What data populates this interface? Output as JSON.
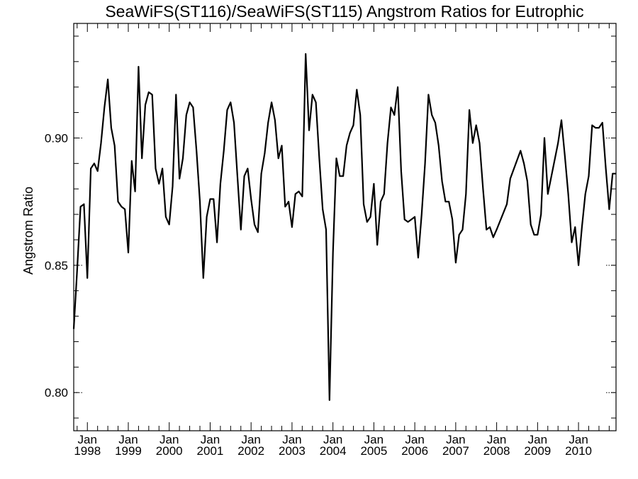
{
  "chart_data": {
    "type": "line",
    "title": "SeaWiFS(ST116)/SeaWiFS(ST115)  Angstrom Ratios for Eutrophic",
    "xlabel": "",
    "ylabel": "Angstrom Ratio",
    "xlim": [
      "1997-09",
      "2010-12"
    ],
    "ylim": [
      0.785,
      0.945
    ],
    "yticks": [
      0.8,
      0.85,
      0.9
    ],
    "ytick_labels": [
      "0.80",
      "0.85",
      "0.90"
    ],
    "xticks": [
      {
        "date": "1998-01",
        "month": "Jan",
        "year": "1998"
      },
      {
        "date": "1999-01",
        "month": "Jan",
        "year": "1999"
      },
      {
        "date": "2000-01",
        "month": "Jan",
        "year": "2000"
      },
      {
        "date": "2001-01",
        "month": "Jan",
        "year": "2001"
      },
      {
        "date": "2002-01",
        "month": "Jan",
        "year": "2002"
      },
      {
        "date": "2003-01",
        "month": "Jan",
        "year": "2003"
      },
      {
        "date": "2004-01",
        "month": "Jan",
        "year": "2004"
      },
      {
        "date": "2005-01",
        "month": "Jan",
        "year": "2005"
      },
      {
        "date": "2006-01",
        "month": "Jan",
        "year": "2006"
      },
      {
        "date": "2007-01",
        "month": "Jan",
        "year": "2007"
      },
      {
        "date": "2008-01",
        "month": "Jan",
        "year": "2008"
      },
      {
        "date": "2009-01",
        "month": "Jan",
        "year": "2009"
      },
      {
        "date": "2010-01",
        "month": "Jan",
        "year": "2010"
      }
    ],
    "grid": "dotted lines at labeled y ticks near axes",
    "series": [
      {
        "x": [
          "1997-09",
          "1997-10",
          "1997-11",
          "1997-12",
          "1998-01",
          "1998-02",
          "1998-03",
          "1998-04",
          "1998-05",
          "1998-06",
          "1998-07",
          "1998-08",
          "1998-09",
          "1998-10",
          "1998-11",
          "1998-12",
          "1999-01",
          "1999-02",
          "1999-03",
          "1999-04",
          "1999-05",
          "1999-06",
          "1999-07",
          "1999-08",
          "1999-09",
          "1999-10",
          "1999-11",
          "1999-12",
          "2000-01",
          "2000-02",
          "2000-03",
          "2000-04",
          "2000-05",
          "2000-06",
          "2000-07",
          "2000-08",
          "2000-09",
          "2000-10",
          "2000-11",
          "2000-12",
          "2001-01",
          "2001-02",
          "2001-03",
          "2001-04",
          "2001-05",
          "2001-06",
          "2001-07",
          "2001-08",
          "2001-09",
          "2001-10",
          "2001-11",
          "2001-12",
          "2002-01",
          "2002-02",
          "2002-03",
          "2002-04",
          "2002-05",
          "2002-06",
          "2002-07",
          "2002-08",
          "2002-09",
          "2002-10",
          "2002-11",
          "2002-12",
          "2003-01",
          "2003-02",
          "2003-03",
          "2003-04",
          "2003-05",
          "2003-06",
          "2003-07",
          "2003-08",
          "2003-09",
          "2003-10",
          "2003-11",
          "2003-12",
          "2004-01",
          "2004-02",
          "2004-03",
          "2004-04",
          "2004-05",
          "2004-06",
          "2004-07",
          "2004-08",
          "2004-09",
          "2004-10",
          "2004-11",
          "2004-12",
          "2005-01",
          "2005-02",
          "2005-03",
          "2005-04",
          "2005-05",
          "2005-06",
          "2005-07",
          "2005-08",
          "2005-09",
          "2005-10",
          "2005-11",
          "2005-12",
          "2006-01",
          "2006-02",
          "2006-03",
          "2006-04",
          "2006-05",
          "2006-06",
          "2006-07",
          "2006-08",
          "2006-09",
          "2006-10",
          "2006-11",
          "2006-12",
          "2007-01",
          "2007-02",
          "2007-03",
          "2007-04",
          "2007-05",
          "2007-06",
          "2007-07",
          "2007-08",
          "2007-09",
          "2007-10",
          "2007-11",
          "2007-12",
          "2008-01",
          "2008-04",
          "2008-05",
          "2008-08",
          "2008-09",
          "2008-10",
          "2008-11",
          "2008-12",
          "2009-01",
          "2009-02",
          "2009-03",
          "2009-04",
          "2009-07",
          "2009-08",
          "2009-09",
          "2009-10",
          "2009-11",
          "2009-12",
          "2010-01",
          "2010-02",
          "2010-03",
          "2010-04",
          "2010-05",
          "2010-06",
          "2010-07",
          "2010-08",
          "2010-09",
          "2010-10",
          "2010-11",
          "2010-12"
        ],
        "y": [
          0.825,
          0.848,
          0.873,
          0.874,
          0.845,
          0.888,
          0.89,
          0.887,
          0.898,
          0.912,
          0.923,
          0.904,
          0.897,
          0.875,
          0.873,
          0.872,
          0.855,
          0.891,
          0.879,
          0.928,
          0.892,
          0.913,
          0.918,
          0.917,
          0.888,
          0.882,
          0.888,
          0.869,
          0.866,
          0.881,
          0.917,
          0.884,
          0.892,
          0.909,
          0.914,
          0.912,
          0.895,
          0.875,
          0.845,
          0.869,
          0.876,
          0.876,
          0.859,
          0.882,
          0.895,
          0.911,
          0.914,
          0.906,
          0.885,
          0.864,
          0.885,
          0.888,
          0.876,
          0.866,
          0.863,
          0.886,
          0.894,
          0.906,
          0.914,
          0.907,
          0.892,
          0.897,
          0.873,
          0.875,
          0.865,
          0.878,
          0.879,
          0.877,
          0.933,
          0.903,
          0.917,
          0.914,
          0.892,
          0.872,
          0.864,
          0.797,
          0.855,
          0.892,
          0.885,
          0.885,
          0.897,
          0.902,
          0.905,
          0.919,
          0.909,
          0.874,
          0.867,
          0.869,
          0.882,
          0.858,
          0.875,
          0.878,
          0.898,
          0.912,
          0.909,
          0.92,
          0.887,
          0.868,
          0.867,
          0.868,
          0.869,
          0.853,
          0.87,
          0.89,
          0.917,
          0.909,
          0.906,
          0.897,
          0.883,
          0.875,
          0.875,
          0.868,
          0.851,
          0.862,
          0.864,
          0.878,
          0.911,
          0.898,
          0.905,
          0.898,
          0.88,
          0.864,
          0.865,
          0.861,
          0.864,
          0.874,
          0.884,
          0.895,
          0.89,
          0.883,
          0.866,
          0.862,
          0.862,
          0.87,
          0.9,
          0.878,
          0.898,
          0.907,
          0.893,
          0.878,
          0.859,
          0.865,
          0.85,
          0.865,
          0.878,
          0.885,
          0.905,
          0.904,
          0.904,
          0.906,
          0.888,
          0.872,
          0.886,
          0.886
        ]
      }
    ]
  }
}
